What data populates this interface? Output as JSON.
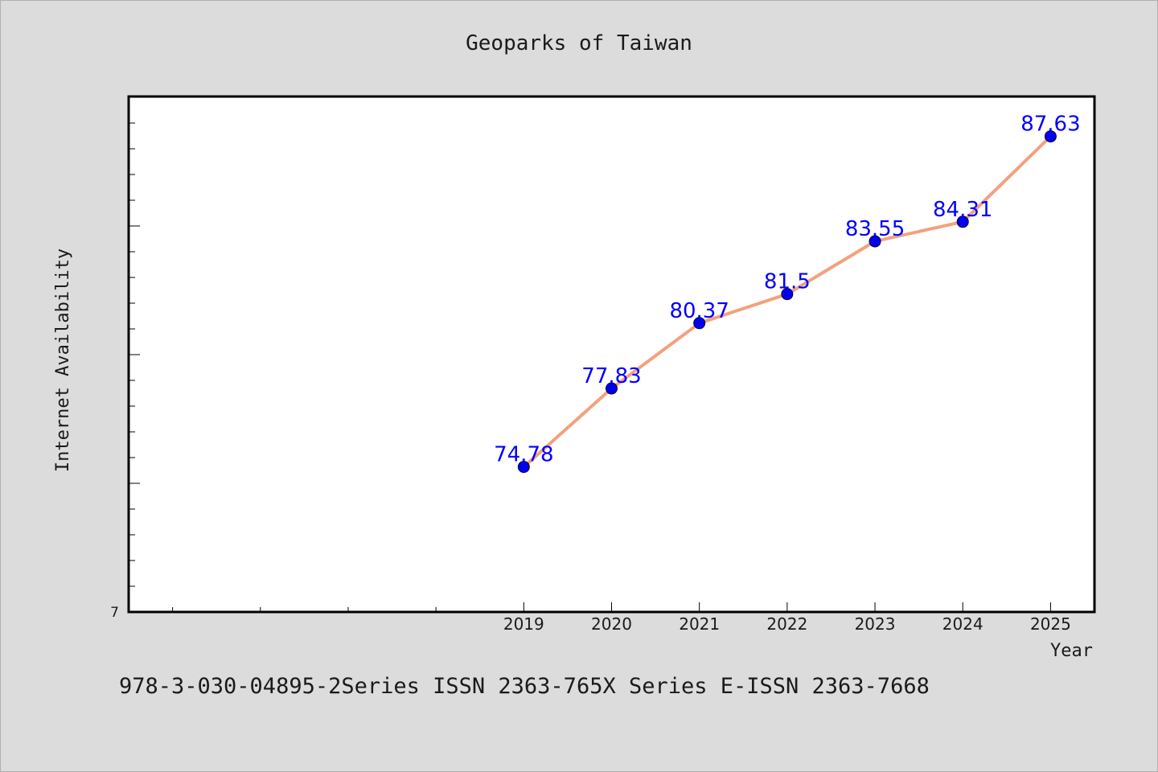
{
  "chart_data": {
    "type": "line",
    "title": "Geoparks of Taiwan",
    "xlabel": "Year",
    "ylabel": "Internet Availability",
    "x_ticks": [
      "2019",
      "2020",
      "2021",
      "2022",
      "2023",
      "2024",
      "2025"
    ],
    "x_minor_ticks": [
      "2015",
      "2016",
      "2017",
      "2018"
    ],
    "y_tick_label": "7",
    "xlim": [
      2014.5,
      2025.5
    ],
    "ylim": [
      69.14,
      89.18
    ],
    "grid": false,
    "series": [
      {
        "x": [
          2019,
          2020,
          2021,
          2022,
          2023,
          2024,
          2025
        ],
        "values": [
          74.78,
          77.83,
          80.37,
          81.5,
          83.55,
          84.31,
          87.63
        ],
        "labels": [
          "74.78",
          "77.83",
          "80.37",
          "81.5",
          "83.55",
          "84.31",
          "87.63"
        ],
        "line_color": "#f4a07e",
        "marker_color": "#0000ee",
        "label_color": "#0000ff"
      }
    ],
    "footer": "978-3-030-04895-2Series ISSN 2363-765X Series E-ISSN 2363-7668"
  },
  "colors": {
    "background": "#dcdcdc",
    "plot_background": "#ffffff",
    "axis": "#000000",
    "text": "#1a1a1a"
  }
}
